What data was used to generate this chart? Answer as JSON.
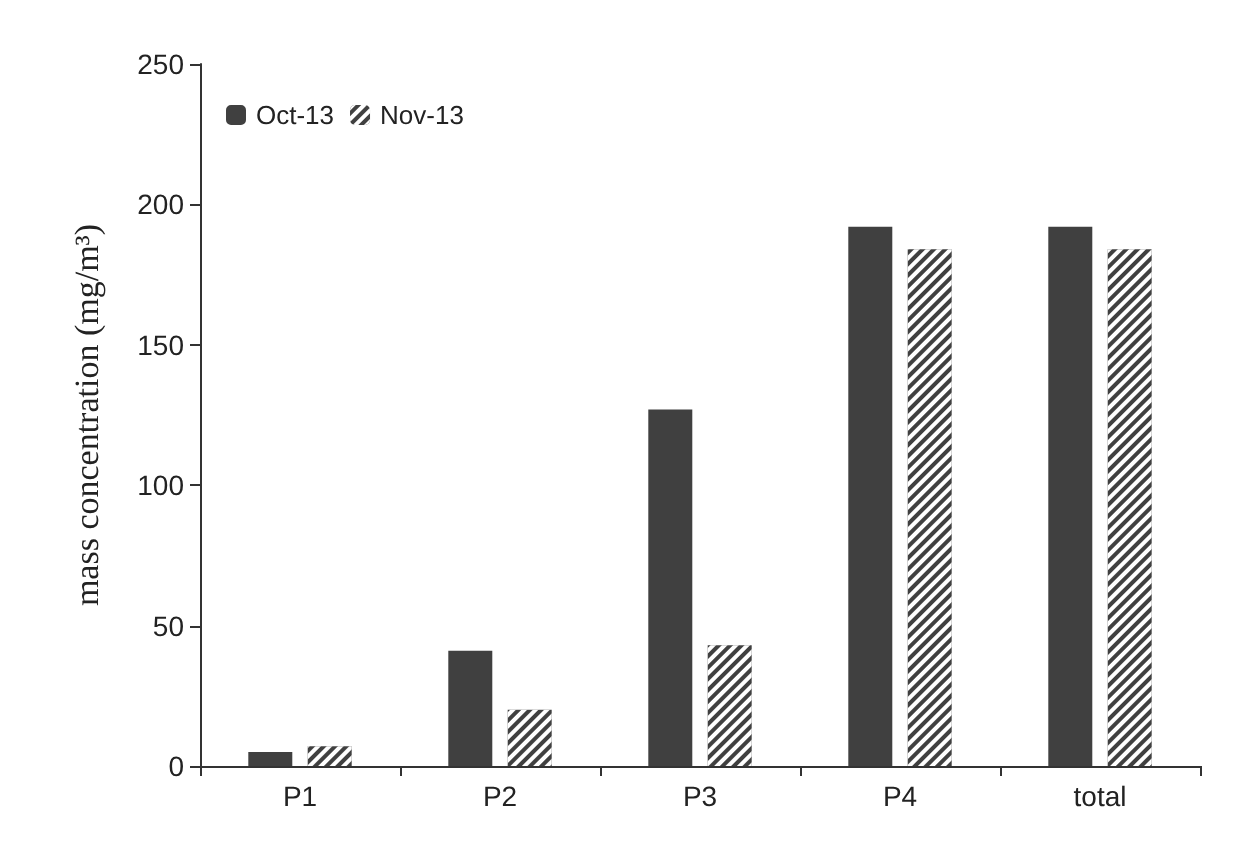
{
  "chart_data": {
    "type": "bar",
    "ylabel": "mass concentration (mg/m³)",
    "categories": [
      "P1",
      "P2",
      "P3",
      "P4",
      "total"
    ],
    "series": [
      {
        "name": "Oct-13",
        "color": "#404040",
        "values": [
          5,
          41,
          127,
          192,
          192
        ]
      },
      {
        "name": "Nov-13",
        "color": "#404040",
        "values": [
          7,
          20,
          43,
          184,
          184
        ]
      }
    ],
    "ylim": [
      0,
      250
    ],
    "yticks": [
      0,
      50,
      100,
      150,
      200,
      250
    ],
    "grid": false,
    "legend": "top left"
  }
}
